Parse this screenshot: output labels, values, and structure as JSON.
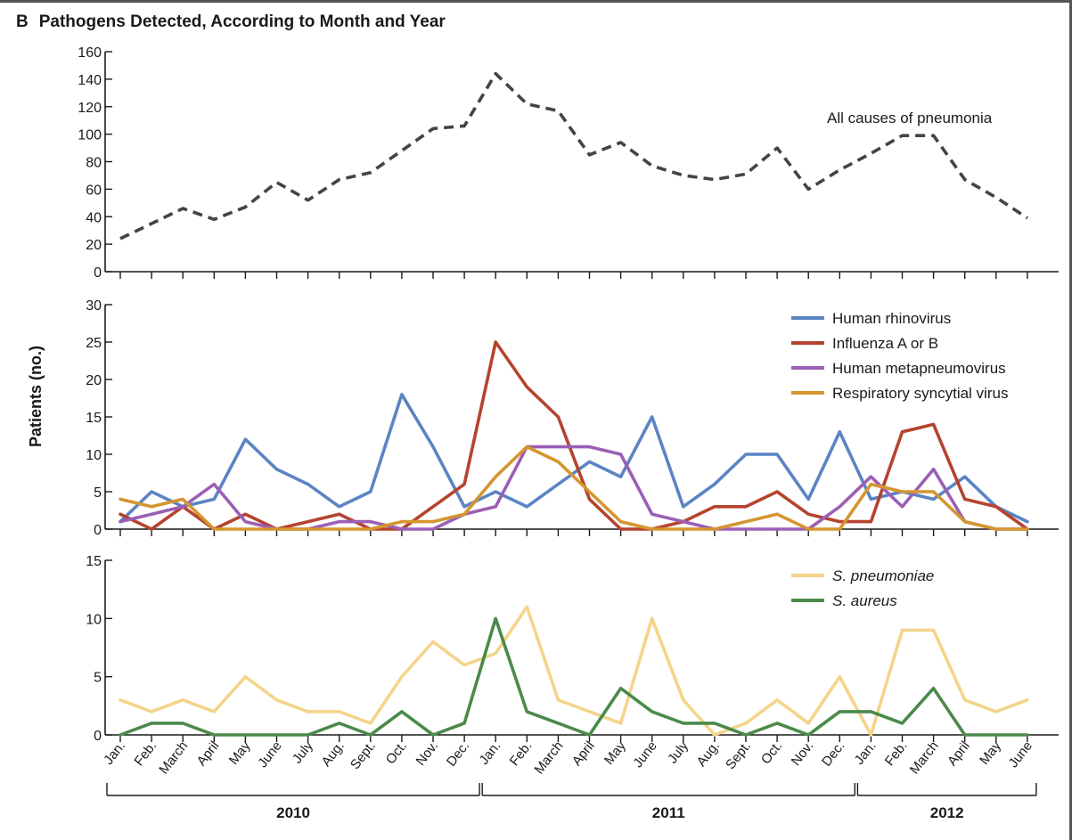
{
  "panel_letter": "B",
  "title": "Pathogens Detected, According to Month and Year",
  "ylabel": "Patients (no.)",
  "months": [
    "Jan.",
    "Feb.",
    "March",
    "April",
    "May",
    "June",
    "July",
    "Aug.",
    "Sept.",
    "Oct.",
    "Nov.",
    "Dec.",
    "Jan.",
    "Feb.",
    "March",
    "April",
    "May",
    "June",
    "July",
    "Aug.",
    "Sept.",
    "Oct.",
    "Nov.",
    "Dec.",
    "Jan.",
    "Feb.",
    "March",
    "April",
    "May",
    "June"
  ],
  "years": [
    {
      "label": "2010",
      "start": 0,
      "end": 11
    },
    {
      "label": "2011",
      "start": 12,
      "end": 23
    },
    {
      "label": "2012",
      "start": 24,
      "end": 29
    }
  ],
  "chart_data": [
    {
      "type": "line",
      "ylim": [
        0,
        160
      ],
      "yticks": [
        0,
        20,
        40,
        60,
        80,
        100,
        120,
        140,
        160
      ],
      "series": [
        {
          "name": "All causes of pneumonia",
          "color": "#444444",
          "dashed": true,
          "label_inline": true,
          "values": [
            24,
            35,
            46,
            38,
            47,
            65,
            52,
            67,
            72,
            88,
            104,
            106,
            144,
            122,
            117,
            85,
            94,
            77,
            70,
            67,
            71,
            90,
            60,
            74,
            86,
            99,
            99,
            67,
            54,
            39
          ]
        }
      ]
    },
    {
      "type": "line",
      "ylim": [
        0,
        30
      ],
      "yticks": [
        0,
        5,
        10,
        15,
        20,
        25,
        30
      ],
      "legend": "top-right",
      "series": [
        {
          "name": "Human rhinovirus",
          "color": "#5b84c4",
          "values": [
            1,
            5,
            3,
            4,
            12,
            8,
            6,
            3,
            5,
            18,
            11,
            3,
            5,
            3,
            6,
            9,
            7,
            15,
            3,
            6,
            10,
            10,
            4,
            13,
            4,
            5,
            4,
            7,
            3,
            1
          ]
        },
        {
          "name": "Influenza A or B",
          "color": "#b5432f",
          "values": [
            2,
            0,
            3,
            0,
            2,
            0,
            1,
            2,
            0,
            0,
            3,
            6,
            25,
            19,
            15,
            4,
            0,
            0,
            1,
            3,
            3,
            5,
            2,
            1,
            1,
            13,
            14,
            4,
            3,
            0
          ]
        },
        {
          "name": "Human metapneumovirus",
          "color": "#9b5fb5",
          "values": [
            1,
            2,
            3,
            6,
            1,
            0,
            0,
            1,
            1,
            0,
            0,
            2,
            3,
            11,
            11,
            11,
            10,
            2,
            1,
            0,
            0,
            0,
            0,
            3,
            7,
            3,
            8,
            1,
            0,
            0
          ]
        },
        {
          "name": "Respiratory syncytial virus",
          "color": "#d4962e",
          "values": [
            4,
            3,
            4,
            0,
            0,
            0,
            0,
            0,
            0,
            1,
            1,
            2,
            7,
            11,
            9,
            5,
            1,
            0,
            0,
            0,
            1,
            2,
            0,
            0,
            6,
            5,
            5,
            1,
            0,
            0
          ]
        }
      ]
    },
    {
      "type": "line",
      "ylim": [
        0,
        15
      ],
      "yticks": [
        0,
        5,
        10,
        15
      ],
      "legend": "top-right",
      "series": [
        {
          "name": "S. pneumoniae",
          "color": "#f5d48a",
          "italic": true,
          "values": [
            3,
            2,
            3,
            2,
            5,
            3,
            2,
            2,
            1,
            5,
            8,
            6,
            7,
            11,
            3,
            2,
            1,
            10,
            3,
            0,
            1,
            3,
            1,
            5,
            0,
            9,
            9,
            3,
            2,
            3
          ]
        },
        {
          "name": "S. aureus",
          "color": "#4a8a4a",
          "italic": true,
          "values": [
            0,
            1,
            1,
            0,
            0,
            0,
            0,
            1,
            0,
            2,
            0,
            1,
            10,
            2,
            1,
            0,
            4,
            2,
            1,
            1,
            0,
            1,
            0,
            2,
            2,
            1,
            4,
            0,
            0,
            0
          ]
        }
      ]
    }
  ]
}
